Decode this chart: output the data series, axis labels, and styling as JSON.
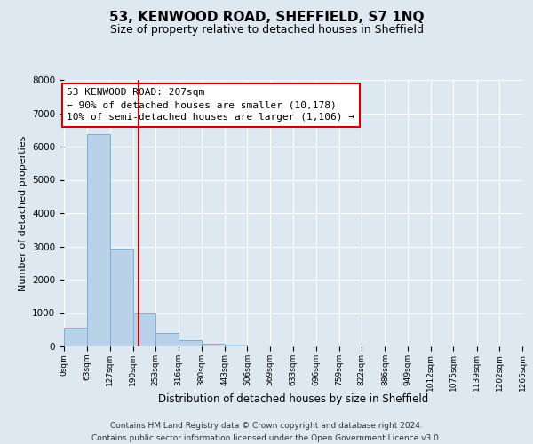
{
  "title": "53, KENWOOD ROAD, SHEFFIELD, S7 1NQ",
  "subtitle": "Size of property relative to detached houses in Sheffield",
  "xlabel": "Distribution of detached houses by size in Sheffield",
  "ylabel": "Number of detached properties",
  "bar_edges": [
    0,
    63,
    127,
    190,
    253,
    316,
    380,
    443,
    506,
    569,
    633,
    696,
    759,
    822,
    886,
    949,
    1012,
    1075,
    1139,
    1202,
    1265
  ],
  "bar_heights": [
    560,
    6380,
    2940,
    990,
    390,
    175,
    85,
    60,
    0,
    0,
    0,
    0,
    0,
    0,
    0,
    0,
    0,
    0,
    0,
    0
  ],
  "bar_color": "#b8d0e8",
  "bar_edgecolor": "#7aafd4",
  "property_line_x": 207,
  "property_line_color": "#cc0000",
  "annotation_box_edgecolor": "#cc0000",
  "annotation_text_line1": "53 KENWOOD ROAD: 207sqm",
  "annotation_text_line2": "← 90% of detached houses are smaller (10,178)",
  "annotation_text_line3": "10% of semi-detached houses are larger (1,106) →",
  "ylim": [
    0,
    8000
  ],
  "yticks": [
    0,
    1000,
    2000,
    3000,
    4000,
    5000,
    6000,
    7000,
    8000
  ],
  "tick_labels": [
    "0sqm",
    "63sqm",
    "127sqm",
    "190sqm",
    "253sqm",
    "316sqm",
    "380sqm",
    "443sqm",
    "506sqm",
    "569sqm",
    "633sqm",
    "696sqm",
    "759sqm",
    "822sqm",
    "886sqm",
    "949sqm",
    "1012sqm",
    "1075sqm",
    "1139sqm",
    "1202sqm",
    "1265sqm"
  ],
  "footer_line1": "Contains HM Land Registry data © Crown copyright and database right 2024.",
  "footer_line2": "Contains public sector information licensed under the Open Government Licence v3.0.",
  "background_color": "#dde8f0",
  "plot_bg_color": "#dde8f0",
  "grid_color": "#ffffff",
  "title_fontsize": 11,
  "subtitle_fontsize": 9,
  "xlabel_fontsize": 8.5,
  "ylabel_fontsize": 8,
  "annotation_fontsize": 8,
  "footer_fontsize": 6.5
}
